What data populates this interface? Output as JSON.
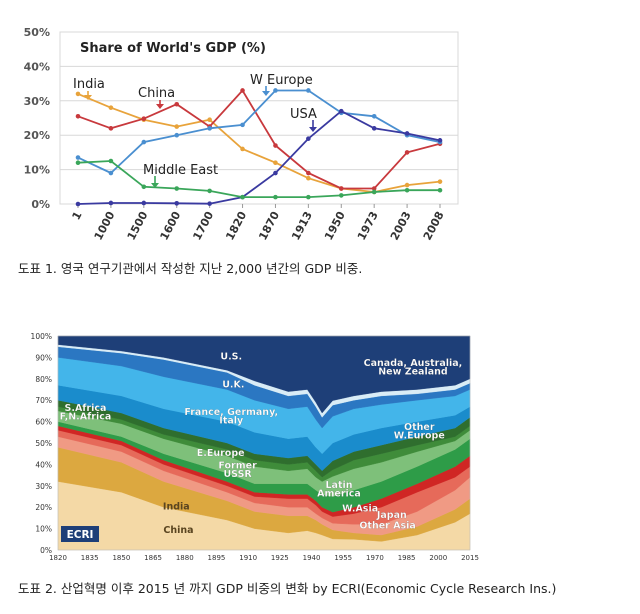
{
  "captions": {
    "figure1": "도표 1. 영국 연구기관에서 작성한 지난 2,000 년간의 GDP 비중.",
    "figure2": "도표 2. 산업혁명 이후 2015 년 까지 GDP 비중의 변화 by ECRI(Economic Cycle Research Ins.)"
  },
  "chart_data": [
    {
      "type": "line",
      "title": "Share of World's GDP (%)",
      "categories": [
        "1",
        "1000",
        "1500",
        "1600",
        "1700",
        "1820",
        "1870",
        "1913",
        "1950",
        "1973",
        "2003",
        "2008"
      ],
      "y_ticks": [
        "0%",
        "10%",
        "20%",
        "30%",
        "40%",
        "50%"
      ],
      "ylim": [
        0,
        50
      ],
      "grid": true,
      "series": [
        {
          "name": "India",
          "color": "#e8a33b",
          "values": [
            32,
            28,
            24.5,
            22.5,
            24.5,
            16,
            12,
            7.5,
            4.5,
            3.5,
            5.5,
            6.5
          ]
        },
        {
          "name": "China",
          "color": "#c8393d",
          "values": [
            25.5,
            22,
            24.8,
            29,
            22.5,
            33,
            17,
            9,
            4.5,
            4.5,
            15,
            17.5
          ]
        },
        {
          "name": "W Europe",
          "color": "#4a8fd0",
          "values": [
            13.5,
            9,
            18,
            20,
            22,
            23,
            33,
            33,
            26.5,
            25.5,
            20,
            18
          ]
        },
        {
          "name": "USA",
          "color": "#3a3aa0",
          "values": [
            0,
            0.3,
            0.3,
            0.2,
            0.1,
            2,
            9,
            19,
            27,
            22,
            20.5,
            18.5
          ]
        },
        {
          "name": "Middle East",
          "color": "#3aa65a",
          "values": [
            12,
            12.5,
            5,
            4.5,
            3.8,
            2,
            2,
            2,
            2.5,
            3.5,
            4,
            4
          ]
        }
      ]
    },
    {
      "type": "area",
      "stacked": true,
      "x_ticks": [
        "1820",
        "1835",
        "1850",
        "1865",
        "1880",
        "1895",
        "1910",
        "1925",
        "1940",
        "1955",
        "1970",
        "1985",
        "2000",
        "2015"
      ],
      "y_ticks": [
        "0%",
        "10%",
        "20%",
        "30%",
        "40%",
        "50%",
        "60%",
        "70%",
        "80%",
        "90%",
        "100%"
      ],
      "ylim": [
        0,
        100
      ],
      "logo": "ECRI",
      "series_order": [
        "China",
        "India",
        "Other Asia",
        "Japan",
        "W Asia",
        "Latin America",
        "Former USSR",
        "E.Europe",
        "S.Africa, N.Africa",
        "Other W.Europe",
        "France, Germany, Italy",
        "U.K.",
        "Canada, Australia, New Zealand",
        "U.S."
      ],
      "x": [
        1820,
        1850,
        1870,
        1900,
        1913,
        1929,
        1938,
        1942,
        1945,
        1950,
        1960,
        1973,
        1990,
        2008,
        2015
      ],
      "series": [
        {
          "name": "China",
          "color": "#f4d9a6",
          "values": [
            32,
            27,
            20,
            14,
            10,
            8,
            9,
            8,
            7,
            5,
            5,
            4,
            7,
            13,
            17
          ]
        },
        {
          "name": "India",
          "color": "#dca840",
          "values": [
            16,
            14,
            12,
            9,
            8,
            8,
            7,
            6,
            5,
            4,
            3,
            3,
            4,
            6,
            7
          ]
        },
        {
          "name": "Other Asia",
          "color": "#f09a84",
          "values": [
            5,
            5,
            5,
            4,
            4,
            4,
            4,
            3,
            3,
            3,
            4,
            5,
            7,
            9,
            10
          ]
        },
        {
          "name": "Japan",
          "color": "#e66a5a",
          "values": [
            3,
            3,
            3,
            3,
            3,
            4,
            4,
            4,
            3,
            3,
            5,
            8,
            9,
            6,
            5
          ]
        },
        {
          "name": "W Asia",
          "color": "#d02624",
          "values": [
            2,
            2,
            2,
            2,
            2,
            2,
            2,
            2,
            2,
            2,
            3,
            4,
            4,
            5,
            5
          ]
        },
        {
          "name": "Latin America",
          "color": "#2e9c48",
          "values": [
            2,
            2,
            3,
            4,
            4,
            5,
            5,
            5,
            6,
            7,
            8,
            8,
            8,
            8,
            8
          ]
        },
        {
          "name": "Former USSR",
          "color": "#7ec07a",
          "values": [
            5,
            6,
            7,
            8,
            8,
            6,
            7,
            6,
            6,
            9,
            10,
            9,
            7,
            4,
            4
          ]
        },
        {
          "name": "E.Europe",
          "color": "#3f8c3a",
          "values": [
            2,
            2,
            2,
            3,
            3,
            3,
            3,
            3,
            2,
            3,
            4,
            4,
            3,
            2,
            2
          ]
        },
        {
          "name": "S.Africa, N.Africa",
          "color": "#2f6e2e",
          "values": [
            3,
            3,
            3,
            3,
            3,
            3,
            3,
            3,
            3,
            4,
            4,
            4,
            4,
            4,
            4
          ]
        },
        {
          "name": "Other W.Europe",
          "color": "#1a8ccc",
          "values": [
            7,
            8,
            9,
            10,
            10,
            9,
            9,
            8,
            8,
            8,
            8,
            8,
            7,
            6,
            5
          ]
        },
        {
          "name": "France, Germany, Italy",
          "color": "#43b5ea",
          "values": [
            13,
            14,
            15,
            15,
            15,
            14,
            14,
            13,
            12,
            12,
            12,
            11,
            10,
            9,
            8
          ]
        },
        {
          "name": "U.K.",
          "color": "#2b77c2",
          "values": [
            5,
            6,
            8,
            8,
            7,
            6,
            6,
            6,
            5,
            5,
            4,
            4,
            3,
            3,
            3
          ]
        },
        {
          "name": "Canada, Australia, New Zealand",
          "color": "#d9ecf6",
          "values": [
            1,
            1,
            1,
            1,
            2,
            2,
            2,
            2,
            2,
            2,
            2,
            2,
            2,
            2,
            2
          ]
        },
        {
          "name": "U.S.",
          "color": "#1e3f78",
          "values": [
            4,
            7,
            10,
            16,
            21,
            26,
            25,
            31,
            36,
            29,
            28,
            26,
            25,
            23,
            20
          ]
        }
      ],
      "labels": [
        {
          "text": "U.S.",
          "x": 1902,
          "y": 89
        },
        {
          "text": "U.K.",
          "x": 1903,
          "y": 76
        },
        {
          "text": "Canada, Australia,",
          "x": 1988,
          "y": 86
        },
        {
          "text": "New Zealand",
          "x": 1988,
          "y": 82
        },
        {
          "text": "France, Germany,",
          "x": 1902,
          "y": 63
        },
        {
          "text": "Italy",
          "x": 1902,
          "y": 59
        },
        {
          "text": "S.Africa",
          "x": 1833,
          "y": 65
        },
        {
          "text": "F,N.Africa",
          "x": 1833,
          "y": 61
        },
        {
          "text": "Other",
          "x": 1991,
          "y": 56
        },
        {
          "text": "W.Europe",
          "x": 1991,
          "y": 52
        },
        {
          "text": "E.Europe",
          "x": 1897,
          "y": 44
        },
        {
          "text": "Former",
          "x": 1905,
          "y": 38
        },
        {
          "text": "USSR",
          "x": 1905,
          "y": 34
        },
        {
          "text": "Latin",
          "x": 1953,
          "y": 29
        },
        {
          "text": "America",
          "x": 1953,
          "y": 25
        },
        {
          "text": "W.Asia",
          "x": 1963,
          "y": 18
        },
        {
          "text": "Japan",
          "x": 1978,
          "y": 15
        },
        {
          "text": "Other Asia",
          "x": 1976,
          "y": 10
        },
        {
          "text": "India",
          "x": 1876,
          "y": 19
        },
        {
          "text": "China",
          "x": 1877,
          "y": 8
        }
      ]
    }
  ]
}
